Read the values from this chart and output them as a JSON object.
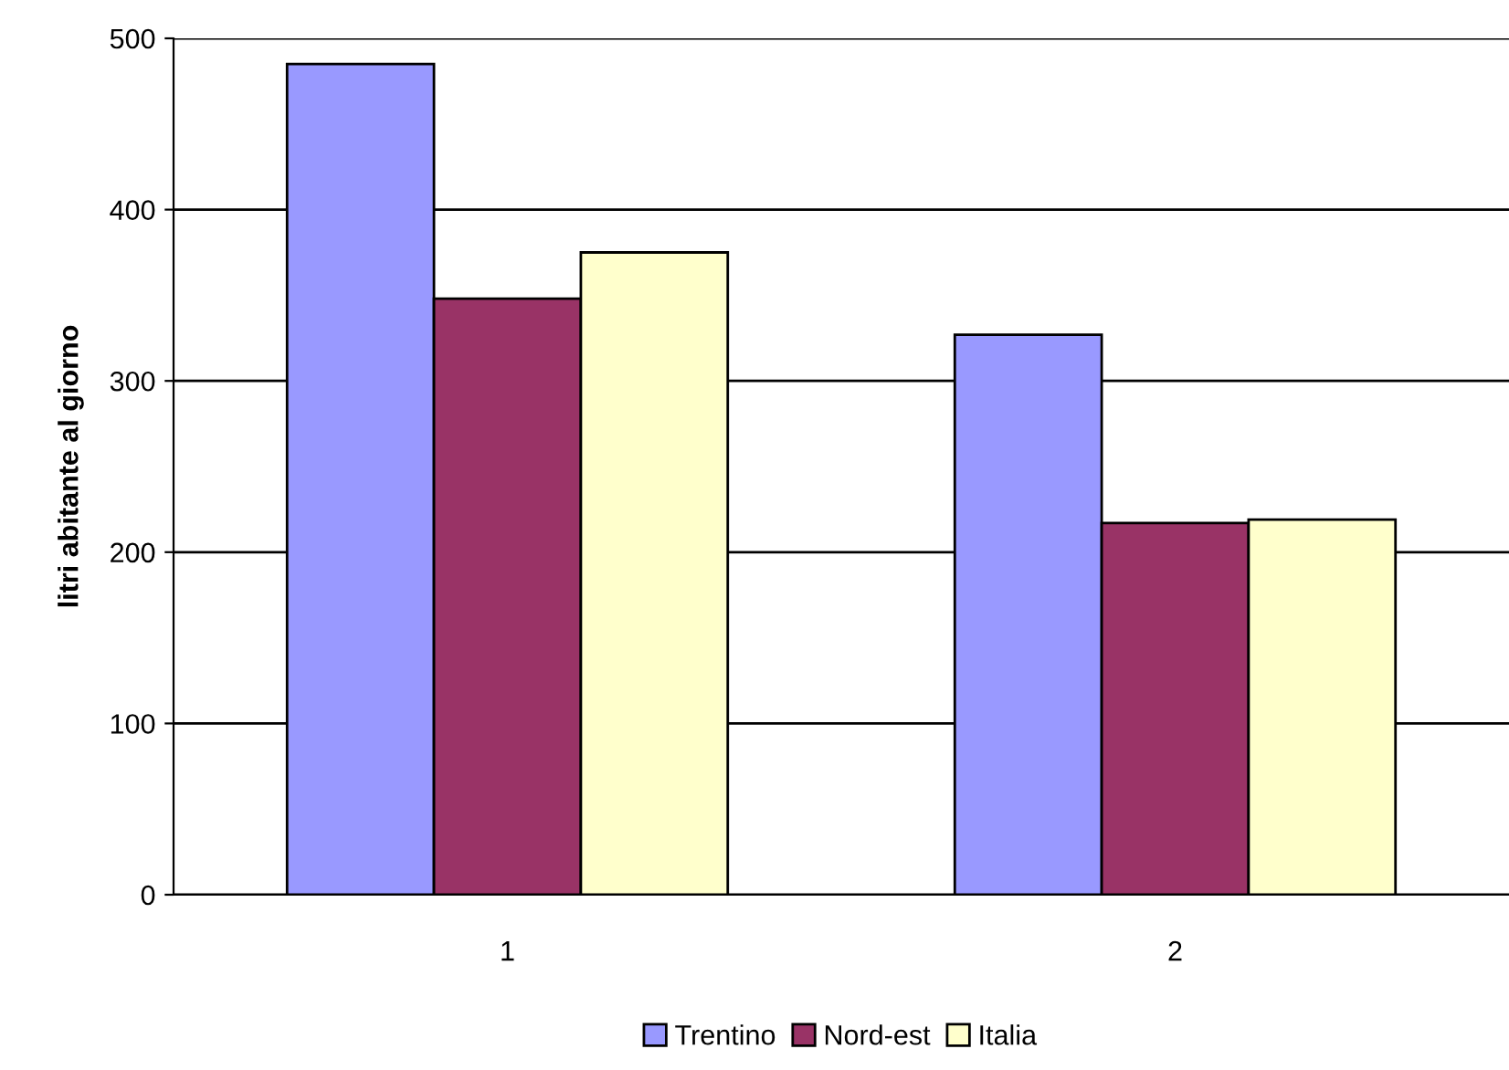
{
  "chart_data": {
    "type": "bar",
    "ylabel": "litri abitante al giorno",
    "categories": [
      "1",
      "2"
    ],
    "series": [
      {
        "name": "Trentino",
        "color": "#9999ff",
        "values": [
          485,
          327
        ]
      },
      {
        "name": "Nord-est",
        "color": "#993366",
        "values": [
          348,
          217
        ]
      },
      {
        "name": "Italia",
        "color": "#ffffcc",
        "values": [
          375,
          219
        ]
      }
    ],
    "ylim": [
      0,
      500
    ],
    "yticks": [
      0,
      100,
      200,
      300,
      400,
      500
    ],
    "grid": "y",
    "legend": "bottom"
  }
}
